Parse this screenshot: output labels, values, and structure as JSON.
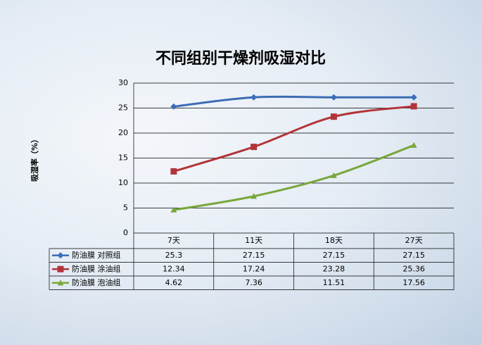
{
  "chart_data": {
    "type": "line",
    "title": "不同组别干燥剂吸湿对比",
    "y_label": "吸湿率（%）",
    "categories": [
      "7天",
      "11天",
      "18天",
      "27天"
    ],
    "series": [
      {
        "name": "防油膜 对照组",
        "color": "#3d6db5",
        "marker": "diamond",
        "values": [
          25.3,
          27.15,
          27.15,
          27.15
        ]
      },
      {
        "name": "防油膜 涂油组",
        "color": "#b2343a",
        "marker": "square",
        "values": [
          12.34,
          17.24,
          23.28,
          25.36
        ]
      },
      {
        "name": "防油膜 泡油组",
        "color": "#79a73c",
        "marker": "triangle",
        "values": [
          4.62,
          7.36,
          11.51,
          17.56
        ]
      }
    ],
    "ylim": [
      0,
      30
    ],
    "yticks": [
      0,
      5,
      10,
      15,
      20,
      25,
      30
    ],
    "grid": true,
    "data_table": true
  }
}
